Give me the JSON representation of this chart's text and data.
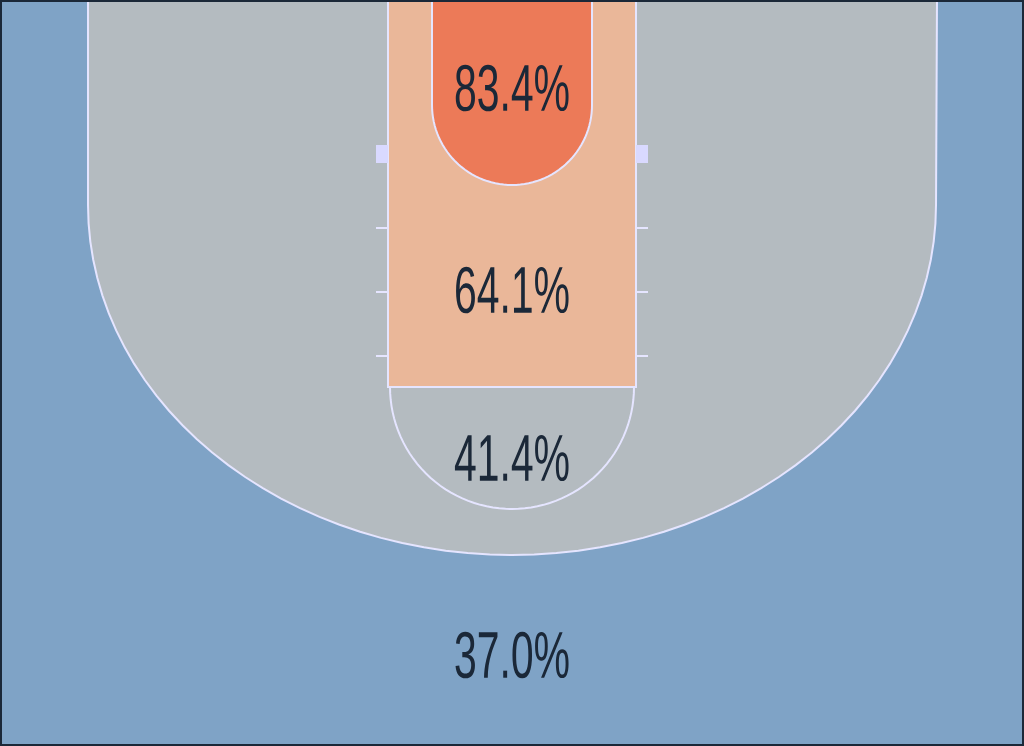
{
  "chart_data": {
    "type": "other",
    "categories": [
      null,
      null,
      null,
      null
    ],
    "values": [
      83.4,
      64.1,
      41.4,
      37.0
    ],
    "value_labels": [
      "83.4%",
      "64.1%",
      "41.4%",
      "37.0%"
    ]
  }
}
